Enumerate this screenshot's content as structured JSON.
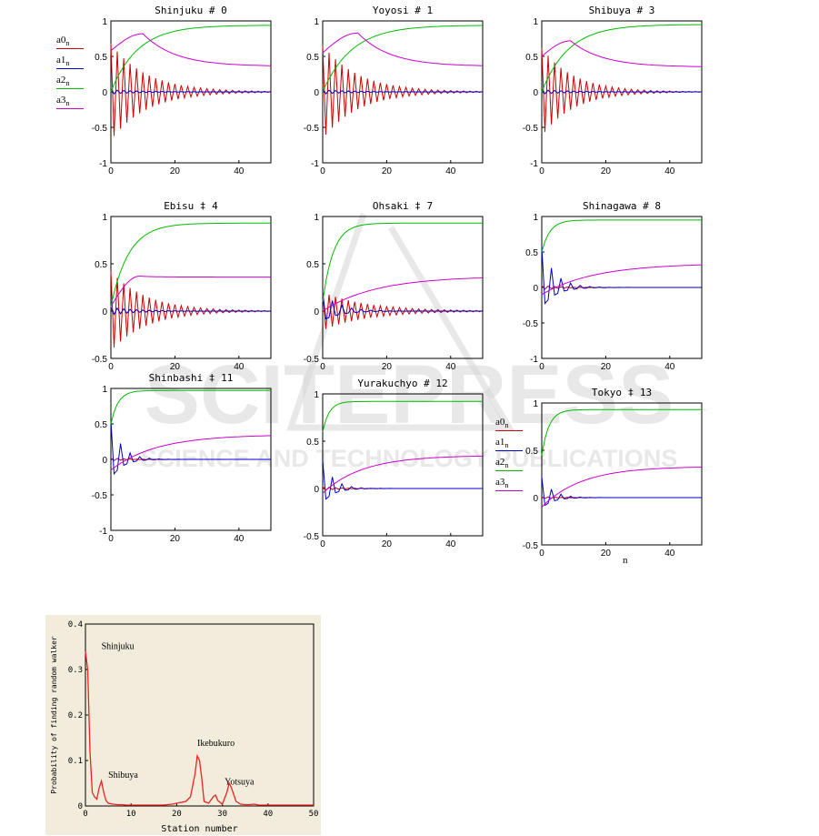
{
  "watermark": {
    "line1": "SCITEPRESS",
    "line2": "SCIENCE AND TECHNOLOGY PUBLICATIONS"
  },
  "legend": [
    {
      "name": "a0",
      "sub": "n",
      "color": "#cc0000"
    },
    {
      "name": "a1",
      "sub": "n",
      "color": "#0000cc"
    },
    {
      "name": "a2",
      "sub": "n",
      "color": "#00bb00"
    },
    {
      "name": "a3",
      "sub": "n",
      "color": "#cc00cc"
    }
  ],
  "n_label": "n",
  "chart_data": [
    {
      "type": "line",
      "title": "Shinjuku  # 0",
      "xlim": [
        0,
        50
      ],
      "ylim": [
        -1,
        1
      ],
      "yticks": [
        "1",
        "0.5",
        "0",
        "-0.5",
        "-1"
      ],
      "xticks": [
        "0",
        "20",
        "40"
      ],
      "series": [
        {
          "name": "a0",
          "model": "osc",
          "amp": 0.68,
          "decay": 0.09,
          "period": 2
        },
        {
          "name": "a1",
          "model": "osc",
          "amp": 0.03,
          "decay": 0.1,
          "period": 2
        },
        {
          "name": "a2",
          "model": "rise",
          "base": 0.0,
          "final": 0.94,
          "rate": 0.12,
          "delay": 0
        },
        {
          "name": "a3",
          "model": "hump",
          "start": 0.58,
          "peak": 0.82,
          "peak_at": 10,
          "final": 0.36,
          "rate": 0.1
        }
      ]
    },
    {
      "type": "line",
      "title": "Yoyosi # 1",
      "xlim": [
        0,
        50
      ],
      "ylim": [
        -1,
        1
      ],
      "yticks": [
        "1",
        "0.5",
        "0",
        "-0.5",
        "-1"
      ],
      "xticks": [
        "0",
        "20",
        "40"
      ],
      "series": [
        {
          "name": "a0",
          "model": "osc",
          "amp": 0.66,
          "decay": 0.09,
          "period": 2
        },
        {
          "name": "a1",
          "model": "osc",
          "amp": 0.03,
          "decay": 0.1,
          "period": 2
        },
        {
          "name": "a2",
          "model": "rise",
          "base": 0.0,
          "final": 0.94,
          "rate": 0.11,
          "delay": 0
        },
        {
          "name": "a3",
          "model": "hump",
          "start": 0.55,
          "peak": 0.83,
          "peak_at": 11,
          "final": 0.36,
          "rate": 0.1
        }
      ]
    },
    {
      "type": "line",
      "title": "Shibuya # 3",
      "xlim": [
        0,
        50
      ],
      "ylim": [
        -1,
        1
      ],
      "yticks": [
        "1",
        "0.5",
        "0",
        "-0.5",
        "-1"
      ],
      "xticks": [
        "0",
        "20",
        "40"
      ],
      "series": [
        {
          "name": "a0",
          "model": "osc",
          "amp": 0.62,
          "decay": 0.1,
          "period": 2
        },
        {
          "name": "a1",
          "model": "osc",
          "amp": 0.03,
          "decay": 0.1,
          "period": 2
        },
        {
          "name": "a2",
          "model": "rise",
          "base": 0.0,
          "final": 0.95,
          "rate": 0.12,
          "delay": 0
        },
        {
          "name": "a3",
          "model": "hump",
          "start": 0.5,
          "peak": 0.72,
          "peak_at": 9,
          "final": 0.35,
          "rate": 0.1
        }
      ]
    },
    {
      "type": "line",
      "title": "Ebisu ‡ 4",
      "xlim": [
        0,
        50
      ],
      "ylim": [
        -0.5,
        1
      ],
      "yticks": [
        "1",
        "0.5",
        "0",
        "-0.5"
      ],
      "xticks": [
        "0",
        "20",
        "40"
      ],
      "series": [
        {
          "name": "a0",
          "model": "osc",
          "amp": 0.42,
          "decay": 0.09,
          "period": 2
        },
        {
          "name": "a1",
          "model": "osc",
          "amp": 0.04,
          "decay": 0.12,
          "period": 2
        },
        {
          "name": "a2",
          "model": "rise",
          "base": 0.05,
          "final": 0.93,
          "rate": 0.18,
          "delay": 0
        },
        {
          "name": "a3",
          "model": "hump",
          "start": 0.05,
          "peak": 0.37,
          "peak_at": 9,
          "final": 0.36,
          "rate": 0.2
        }
      ]
    },
    {
      "type": "line",
      "title": "Ohsaki ‡ 7",
      "xlim": [
        0,
        50
      ],
      "ylim": [
        -0.5,
        1
      ],
      "yticks": [
        "1",
        "0.5",
        "0",
        "-0.5"
      ],
      "xticks": [
        "0",
        "20",
        "40"
      ],
      "series": [
        {
          "name": "a0",
          "model": "osc",
          "amp": 0.2,
          "decay": 0.07,
          "period": 2
        },
        {
          "name": "a1",
          "model": "osc",
          "amp": 0.2,
          "decay": 0.2,
          "period": 3
        },
        {
          "name": "a2",
          "model": "rise",
          "base": 0.1,
          "final": 0.93,
          "rate": 0.3,
          "delay": 0
        },
        {
          "name": "a3",
          "model": "rise",
          "base": 0.0,
          "final": 0.37,
          "rate": 0.06,
          "delay": 0
        }
      ]
    },
    {
      "type": "line",
      "title": "Shinagawa # 8",
      "xlim": [
        0,
        50
      ],
      "ylim": [
        -1,
        1
      ],
      "yticks": [
        "1",
        "0.5",
        "0",
        "-0.5",
        "-1"
      ],
      "xticks": [
        "0",
        "20",
        "40"
      ],
      "series": [
        {
          "name": "a0",
          "model": "osc",
          "amp": 0.03,
          "decay": 0.2,
          "period": 2
        },
        {
          "name": "a1",
          "model": "osc",
          "amp": 0.58,
          "decay": 0.25,
          "period": 3
        },
        {
          "name": "a2",
          "model": "rise",
          "base": 0.5,
          "final": 0.95,
          "rate": 0.4,
          "delay": 0
        },
        {
          "name": "a3",
          "model": "rise",
          "base": -0.1,
          "final": 0.34,
          "rate": 0.06,
          "delay": 0
        }
      ]
    },
    {
      "type": "line",
      "title": "Shinbashi ‡ 11",
      "xlim": [
        0,
        50
      ],
      "ylim": [
        -1,
        1
      ],
      "yticks": [
        "1",
        "0.5",
        "0",
        "-0.5",
        "-1"
      ],
      "xticks": [
        "0",
        "20",
        "40"
      ],
      "series": [
        {
          "name": "a0",
          "model": "osc",
          "amp": 0.02,
          "decay": 0.2,
          "period": 2
        },
        {
          "name": "a1",
          "model": "osc",
          "amp": 0.55,
          "decay": 0.3,
          "period": 3
        },
        {
          "name": "a2",
          "model": "rise",
          "base": 0.5,
          "final": 0.97,
          "rate": 0.45,
          "delay": 0
        },
        {
          "name": "a3",
          "model": "rise",
          "base": -0.15,
          "final": 0.35,
          "rate": 0.07,
          "delay": 0
        }
      ]
    },
    {
      "type": "line",
      "title": "Yurakuchyo # 12",
      "xlim": [
        0,
        50
      ],
      "ylim": [
        -0.5,
        1
      ],
      "yticks": [
        "1",
        "0.5",
        "0",
        "-0.5"
      ],
      "xticks": [
        "0",
        "20",
        "40"
      ],
      "series": [
        {
          "name": "a0",
          "model": "osc",
          "amp": 0.02,
          "decay": 0.2,
          "period": 2
        },
        {
          "name": "a1",
          "model": "osc",
          "amp": 0.3,
          "decay": 0.3,
          "period": 3
        },
        {
          "name": "a2",
          "model": "rise",
          "base": 0.6,
          "final": 0.92,
          "rate": 0.5,
          "delay": 0
        },
        {
          "name": "a3",
          "model": "rise",
          "base": -0.05,
          "final": 0.35,
          "rate": 0.08,
          "delay": 0
        }
      ]
    },
    {
      "type": "line",
      "title": "Tokyo ‡ 13",
      "xlim": [
        0,
        50
      ],
      "ylim": [
        -0.5,
        1
      ],
      "yticks": [
        "1",
        "0.5",
        "0",
        "-0.5"
      ],
      "xticks": [
        "0",
        "20",
        "40"
      ],
      "series": [
        {
          "name": "a0",
          "model": "osc",
          "amp": 0.01,
          "decay": 0.2,
          "period": 2
        },
        {
          "name": "a1",
          "model": "osc",
          "amp": 0.22,
          "decay": 0.3,
          "period": 3
        },
        {
          "name": "a2",
          "model": "rise",
          "base": 0.45,
          "final": 0.93,
          "rate": 0.45,
          "delay": 0
        },
        {
          "name": "a3",
          "model": "rise",
          "base": -0.1,
          "final": 0.33,
          "rate": 0.08,
          "delay": 0
        }
      ]
    },
    {
      "type": "line",
      "title": "",
      "xlabel": "Station number",
      "ylabel": "Probability of finding random walker",
      "xlim": [
        0,
        50
      ],
      "ylim": [
        0,
        0.4
      ],
      "yticks": [
        "0",
        "0.1",
        "0.2",
        "0.3",
        "0.4"
      ],
      "xticks": [
        "0",
        "10",
        "20",
        "30",
        "40",
        "50"
      ],
      "series": [
        {
          "name": "",
          "color": "#ee2222",
          "x": [
            0,
            0.5,
            1,
            1.5,
            2,
            2.5,
            3,
            3.5,
            4,
            4.5,
            5,
            6,
            7,
            8,
            9,
            10,
            11,
            12,
            13,
            14,
            15,
            16,
            17,
            18,
            19,
            20,
            21,
            22,
            23,
            24,
            24.5,
            25,
            25.5,
            26,
            27,
            28,
            28.5,
            29,
            30,
            31,
            31.5,
            32,
            33,
            34,
            35,
            36,
            37,
            38,
            40,
            45,
            50
          ],
          "y": [
            0.34,
            0.3,
            0.12,
            0.03,
            0.02,
            0.015,
            0.04,
            0.055,
            0.03,
            0.012,
            0.006,
            0.004,
            0.003,
            0.003,
            0.002,
            0.002,
            0.002,
            0.002,
            0.002,
            0.002,
            0.002,
            0.002,
            0.002,
            0.003,
            0.004,
            0.006,
            0.008,
            0.01,
            0.02,
            0.07,
            0.11,
            0.1,
            0.06,
            0.01,
            0.006,
            0.02,
            0.024,
            0.012,
            0.004,
            0.03,
            0.05,
            0.04,
            0.01,
            0.004,
            0.003,
            0.003,
            0.004,
            0.002,
            0.002,
            0.002,
            0.002
          ]
        }
      ],
      "annotations": [
        {
          "text": "Shinjuku",
          "x": 3.5,
          "y": 0.345
        },
        {
          "text": "Shibuya",
          "x": 5,
          "y": 0.062
        },
        {
          "text": "Ikebukuro",
          "x": 24.5,
          "y": 0.132
        },
        {
          "text": "Yotsuya",
          "x": 30.5,
          "y": 0.047
        }
      ]
    }
  ]
}
